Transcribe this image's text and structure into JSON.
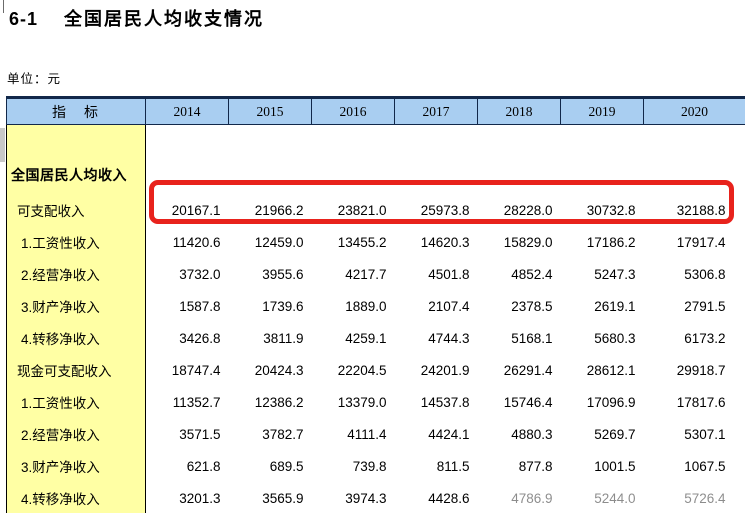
{
  "header": {
    "table_no": "6-1",
    "title": "全国居民人均收支情况",
    "unit": "单位：元"
  },
  "table": {
    "indicator_header": "指　标",
    "years": [
      "2014",
      "2015",
      "2016",
      "2017",
      "2018",
      "2019",
      "2020"
    ],
    "rows": [
      {
        "label": "全国居民人均收入",
        "type": "group",
        "indent": 0,
        "values": []
      },
      {
        "label": "可支配收入",
        "type": "data",
        "indent": 1,
        "highlighted": true,
        "values": [
          "20167.1",
          "21966.2",
          "23821.0",
          "25973.8",
          "28228.0",
          "30732.8",
          "32188.8"
        ]
      },
      {
        "label": "1.工资性收入",
        "type": "data",
        "indent": 2,
        "values": [
          "11420.6",
          "12459.0",
          "13455.2",
          "14620.3",
          "15829.0",
          "17186.2",
          "17917.4"
        ]
      },
      {
        "label": "2.经营净收入",
        "type": "data",
        "indent": 2,
        "values": [
          "3732.0",
          "3955.6",
          "4217.7",
          "4501.8",
          "4852.4",
          "5247.3",
          "5306.8"
        ]
      },
      {
        "label": "3.财产净收入",
        "type": "data",
        "indent": 2,
        "values": [
          "1587.8",
          "1739.6",
          "1889.0",
          "2107.4",
          "2378.5",
          "2619.1",
          "2791.5"
        ]
      },
      {
        "label": "4.转移净收入",
        "type": "data",
        "indent": 2,
        "values": [
          "3426.8",
          "3811.9",
          "4259.1",
          "4744.3",
          "5168.1",
          "5680.3",
          "6173.2"
        ]
      },
      {
        "label": "现金可支配收入",
        "type": "data",
        "indent": 1,
        "values": [
          "18747.4",
          "20424.3",
          "22204.5",
          "24201.9",
          "26291.4",
          "28612.1",
          "29918.7"
        ]
      },
      {
        "label": "1.工资性收入",
        "type": "data",
        "indent": 2,
        "values": [
          "11352.7",
          "12386.2",
          "13379.0",
          "14537.8",
          "15746.4",
          "17096.9",
          "17817.6"
        ]
      },
      {
        "label": "2.经营净收入",
        "type": "data",
        "indent": 2,
        "values": [
          "3571.5",
          "3782.7",
          "4111.4",
          "4424.1",
          "4880.3",
          "5269.7",
          "5307.1"
        ]
      },
      {
        "label": "3.财产净收入",
        "type": "data",
        "indent": 2,
        "values": [
          "621.8",
          "689.5",
          "739.8",
          "811.5",
          "877.8",
          "1001.5",
          "1067.5"
        ]
      },
      {
        "label": "4.转移净收入",
        "type": "data",
        "indent": 2,
        "values": [
          "3201.3",
          "3565.9",
          "3974.3",
          "4428.6",
          "4786.9",
          "5244.0",
          "5726.4"
        ]
      }
    ]
  },
  "colors": {
    "header_fill": "#a9cef1",
    "indicator_fill": "#ffffa4",
    "border_dark": "#12284a",
    "highlight_red": "#e8221c"
  }
}
